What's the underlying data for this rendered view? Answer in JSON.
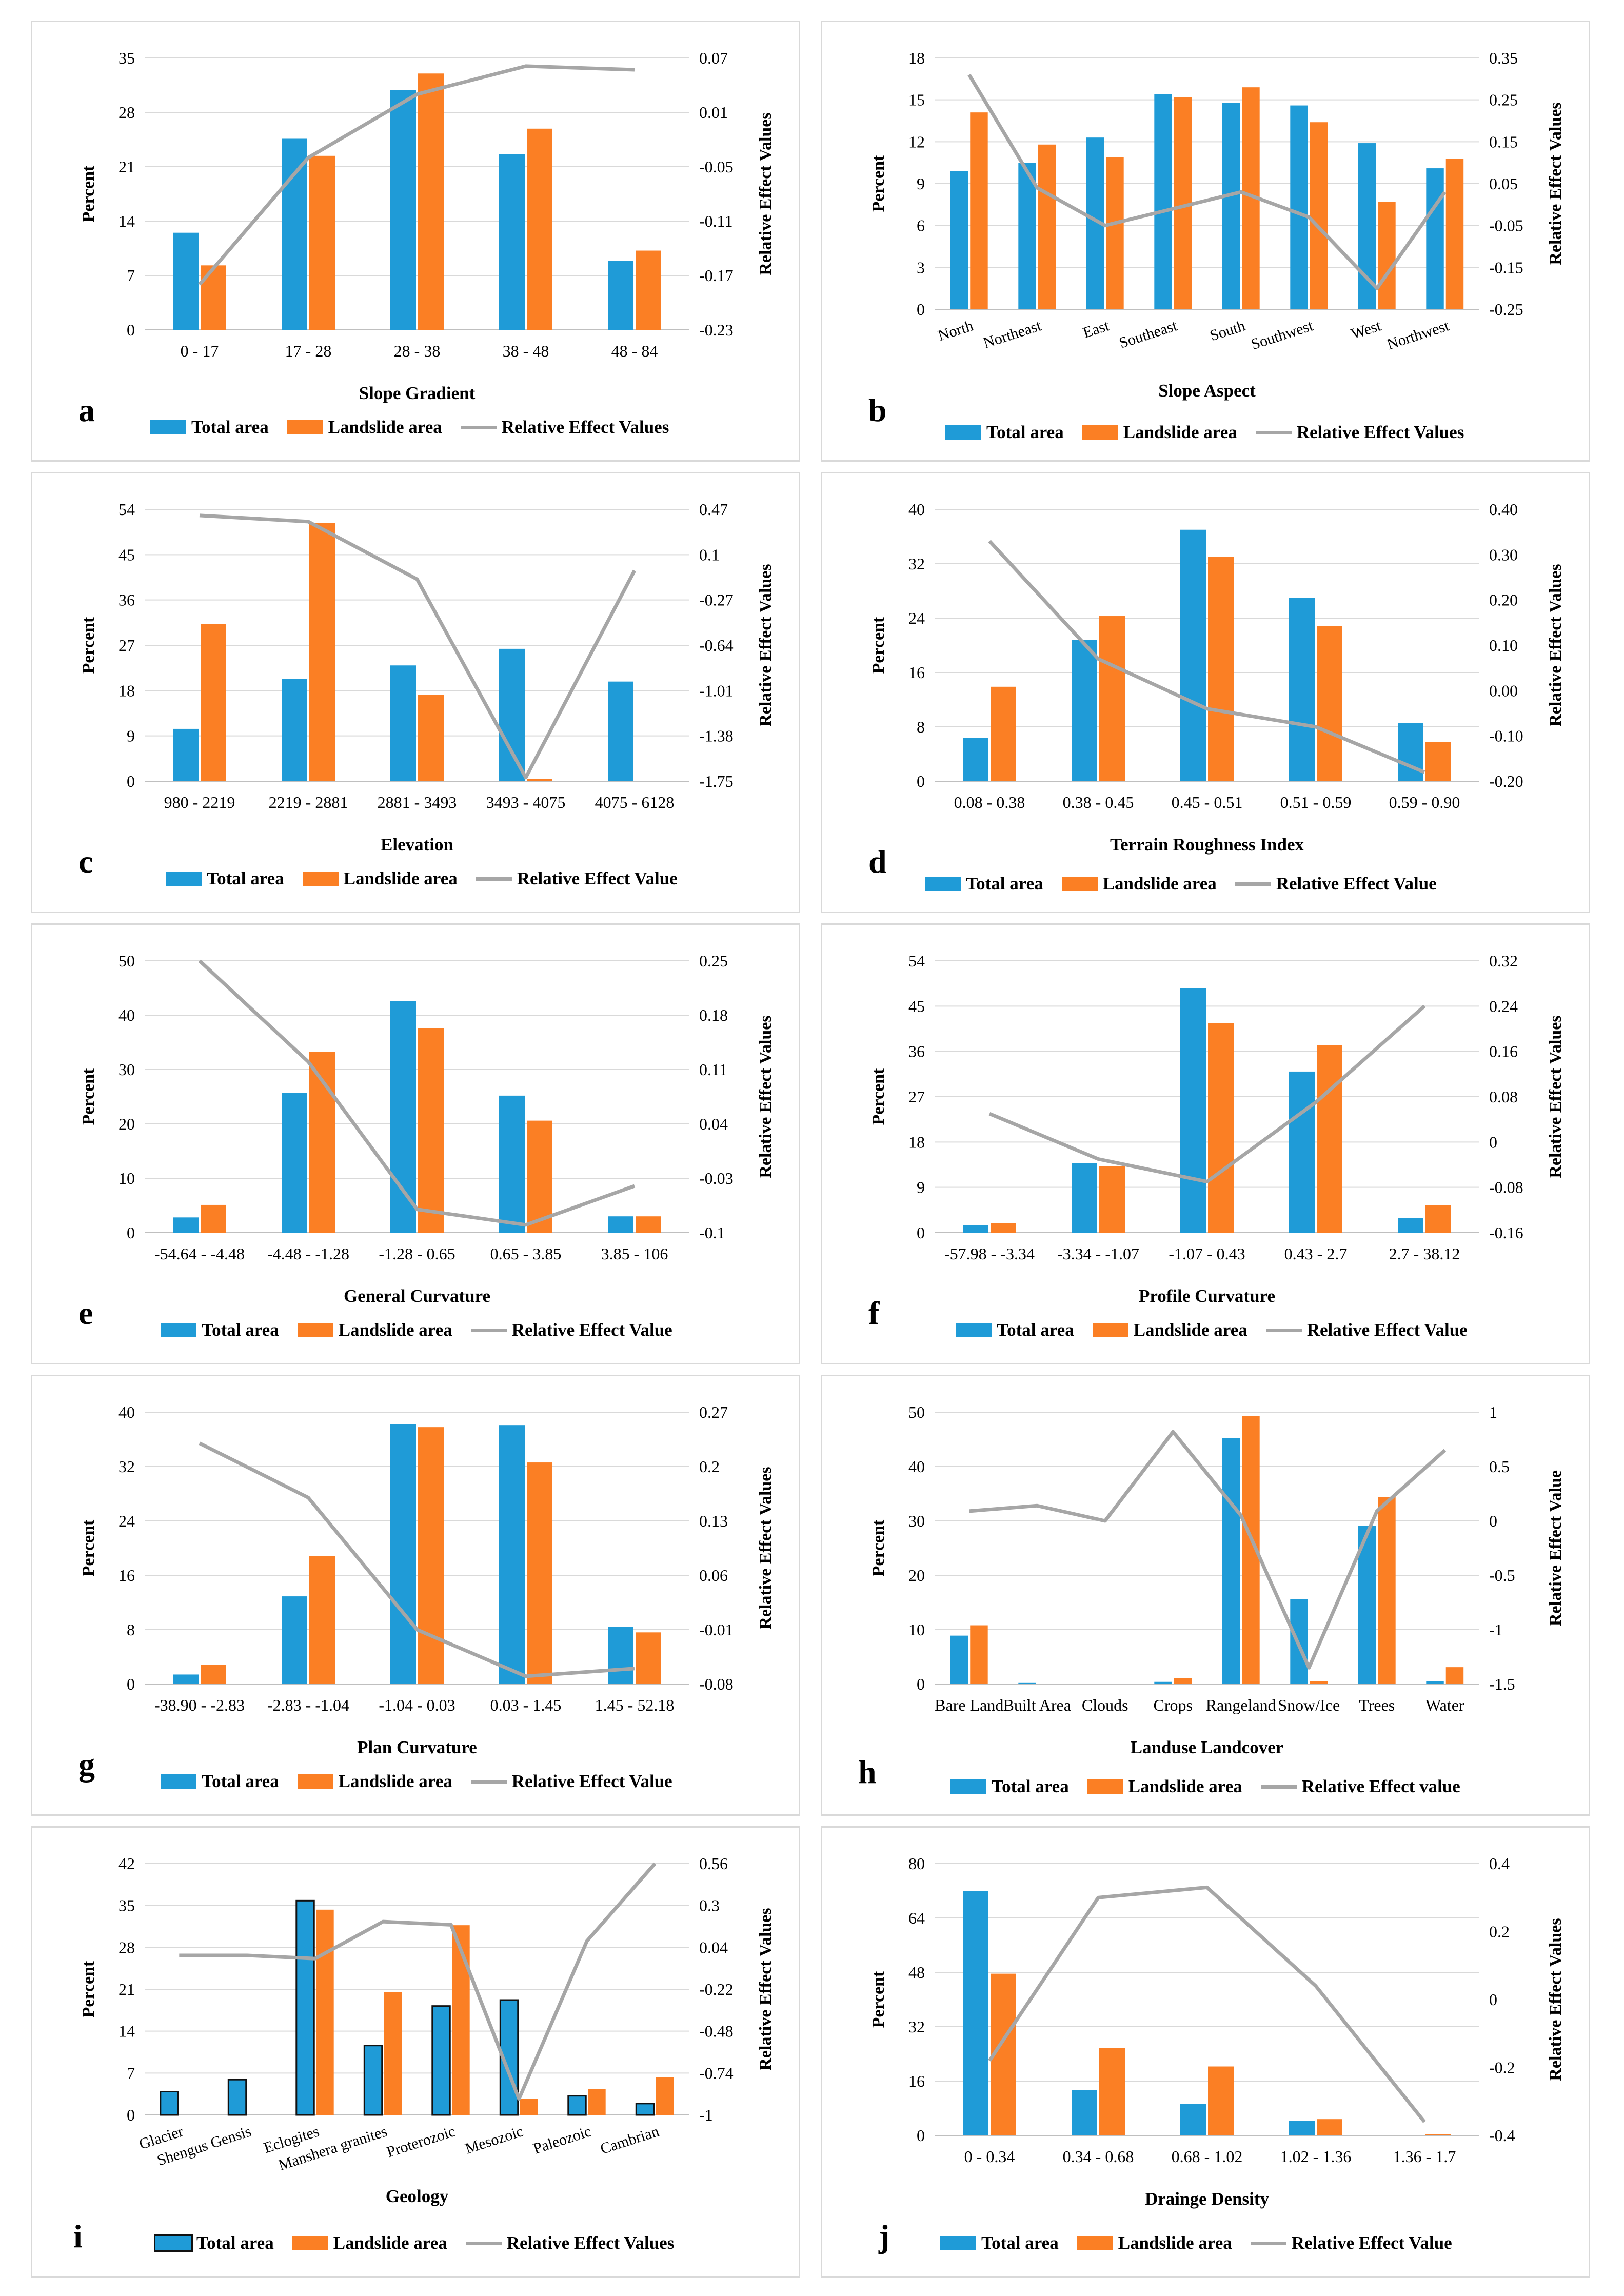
{
  "colors": {
    "total": "#1f9bd7",
    "landslide": "#fb7f24",
    "ree": "#a6a6a6",
    "grid": "#d9d9d9"
  },
  "chart_data": [
    {
      "id": "a",
      "type": "bar+line",
      "xlabel": "Slope Gradient",
      "ylabel": "Percent",
      "y2label": "Relative Effect Values",
      "categories": [
        "0 - 17",
        "17 - 28",
        "28 - 38",
        "38 - 48",
        "48 - 84"
      ],
      "ylim": [
        0,
        35
      ],
      "yticks": [
        "0",
        "7",
        "14",
        "21",
        "28",
        "35"
      ],
      "y2lim": [
        -0.23,
        0.07
      ],
      "y2ticks": [
        "-0.23",
        "-0.17",
        "-0.11",
        "-0.05",
        "0.01",
        "0.07"
      ],
      "total": [
        12.5,
        24.6,
        30.9,
        22.6,
        8.9
      ],
      "landslide": [
        8.3,
        22.4,
        33.0,
        25.9,
        10.2
      ],
      "ree": [
        -0.18,
        -0.04,
        0.03,
        0.061,
        0.057
      ],
      "legend": [
        "Total area",
        "Landslide area",
        "Relative Effect Values"
      ],
      "tilted": false
    },
    {
      "id": "b",
      "type": "bar+line",
      "xlabel": "Slope Aspect",
      "ylabel": "Percent",
      "y2label": "Relative Effect Values",
      "categories": [
        "North",
        "Northeast",
        "East",
        "Southeast",
        "South",
        "Southwest",
        "West",
        "Northwest"
      ],
      "ylim": [
        0,
        18
      ],
      "yticks": [
        "0",
        "3",
        "6",
        "9",
        "12",
        "15",
        "18"
      ],
      "y2lim": [
        -0.25,
        0.35
      ],
      "y2ticks": [
        "-0.25",
        "-0.15",
        "-0.05",
        "0.05",
        "0.15",
        "0.25",
        "0.35"
      ],
      "total": [
        9.9,
        10.5,
        12.3,
        15.4,
        14.8,
        14.6,
        11.9,
        10.1
      ],
      "landslide": [
        14.1,
        11.8,
        10.9,
        15.2,
        15.9,
        13.4,
        7.7,
        10.8
      ],
      "ree": [
        0.31,
        0.04,
        -0.05,
        -0.01,
        0.03,
        -0.03,
        -0.2,
        0.03
      ],
      "legend": [
        "Total area",
        "Landslide area",
        "Relative Effect Values"
      ],
      "tilted": true
    },
    {
      "id": "c",
      "type": "bar+line",
      "xlabel": "Elevation",
      "ylabel": "Percent",
      "y2label": "Relative Effect Values",
      "categories": [
        "980 - 2219",
        "2219 - 2881",
        "2881 - 3493",
        "3493 - 4075",
        "4075 - 6128"
      ],
      "ylim": [
        0,
        54
      ],
      "yticks": [
        "0",
        "9",
        "18",
        "27",
        "36",
        "45",
        "54"
      ],
      "y2lim": [
        -1.75,
        0.47
      ],
      "y2ticks": [
        "-1.75",
        "-1.38",
        "-1.01",
        "-0.64",
        "-0.27",
        "0.1",
        "0.47"
      ],
      "total": [
        10.4,
        20.3,
        23.0,
        26.3,
        19.8
      ],
      "landslide": [
        31.2,
        51.3,
        17.2,
        0.5,
        0
      ],
      "ree": [
        0.42,
        0.37,
        -0.1,
        -1.72,
        -0.03
      ],
      "legend": [
        "Total area",
        "Landslide area",
        "Relative Effect Value"
      ],
      "tilted": false
    },
    {
      "id": "d",
      "type": "bar+line",
      "xlabel": "Terrain Roughness Index",
      "ylabel": "Percent",
      "y2label": "Relative Effect Values",
      "categories": [
        "0.08 - 0.38",
        "0.38 - 0.45",
        "0.45 - 0.51",
        "0.51 - 0.59",
        "0.59 - 0.90"
      ],
      "ylim": [
        0,
        40
      ],
      "yticks": [
        "0",
        "8",
        "16",
        "24",
        "32",
        "40"
      ],
      "y2lim": [
        -0.2,
        0.4
      ],
      "y2ticks": [
        "-0.20",
        "-0.10",
        "0.00",
        "0.10",
        "0.20",
        "0.30",
        "0.40"
      ],
      "total": [
        6.4,
        20.8,
        37.0,
        27.0,
        8.6
      ],
      "landslide": [
        13.9,
        24.3,
        33.0,
        22.8,
        5.8
      ],
      "ree": [
        0.33,
        0.07,
        -0.04,
        -0.08,
        -0.18
      ],
      "legend": [
        "Total area",
        "Landslide area",
        "Relative Effect Value"
      ],
      "tilted": false
    },
    {
      "id": "e",
      "type": "bar+line",
      "xlabel": "General Curvature",
      "ylabel": "Percent",
      "y2label": "Relative Effect Values",
      "categories": [
        "-54.64 - -4.48",
        "-4.48 - -1.28",
        "-1.28 - 0.65",
        "0.65 - 3.85",
        "3.85 - 106"
      ],
      "ylim": [
        0,
        50
      ],
      "yticks": [
        "0",
        "10",
        "20",
        "30",
        "40",
        "50"
      ],
      "y2lim": [
        -0.1,
        0.25
      ],
      "y2ticks": [
        "-0.1",
        "-0.03",
        "0.04",
        "0.11",
        "0.18",
        "0.25"
      ],
      "total": [
        2.8,
        25.7,
        42.6,
        25.2,
        3.0
      ],
      "landslide": [
        5.1,
        33.3,
        37.6,
        20.6,
        3.0
      ],
      "ree": [
        0.25,
        0.12,
        -0.07,
        -0.09,
        -0.04
      ],
      "legend": [
        "Total area",
        "Landslide area",
        "Relative Effect Value"
      ],
      "tilted": false
    },
    {
      "id": "f",
      "type": "bar+line",
      "xlabel": "Profile Curvature",
      "ylabel": "Percent",
      "y2label": "Relative Effect Values",
      "categories": [
        "-57.98 - -3.34",
        "-3.34 - -1.07",
        "-1.07 - 0.43",
        "0.43 - 2.7",
        "2.7 - 38.12"
      ],
      "ylim": [
        0,
        54
      ],
      "yticks": [
        "0",
        "9",
        "18",
        "27",
        "36",
        "45",
        "54"
      ],
      "y2lim": [
        -0.16,
        0.32
      ],
      "y2ticks": [
        "-0.16",
        "-0.08",
        "0",
        "0.08",
        "0.16",
        "0.24",
        "0.32"
      ],
      "total": [
        1.5,
        13.8,
        48.6,
        32.0,
        2.9
      ],
      "landslide": [
        1.9,
        13.2,
        41.6,
        37.2,
        5.4
      ],
      "ree": [
        0.05,
        -0.03,
        -0.07,
        0.07,
        0.24
      ],
      "legend": [
        "Total area",
        "Landslide area",
        "Relative Effect Value"
      ],
      "tilted": false
    },
    {
      "id": "g",
      "type": "bar+line",
      "xlabel": "Plan Curvature",
      "ylabel": "Percent",
      "y2label": "Relative Effect Values",
      "categories": [
        "-38.90 - -2.83",
        "-2.83 - -1.04",
        "-1.04 - 0.03",
        "0.03 - 1.45",
        "1.45 - 52.18"
      ],
      "ylim": [
        0,
        40
      ],
      "yticks": [
        "0",
        "8",
        "16",
        "24",
        "32",
        "40"
      ],
      "y2lim": [
        -0.08,
        0.27
      ],
      "y2ticks": [
        "-0.08",
        "-0.01",
        "0.06",
        "0.13",
        "0.2",
        "0.27"
      ],
      "total": [
        1.4,
        12.9,
        38.2,
        38.1,
        8.4
      ],
      "landslide": [
        2.8,
        18.8,
        37.8,
        32.6,
        7.6
      ],
      "ree": [
        0.23,
        0.16,
        -0.01,
        -0.07,
        -0.06
      ],
      "legend": [
        "Total area",
        "Landslide area",
        "Relative Effect Value"
      ],
      "tilted": false
    },
    {
      "id": "h",
      "type": "bar+line",
      "xlabel": "Landuse Landcover",
      "ylabel": "Percent",
      "y2label": "Relative Effect Value",
      "categories": [
        "Bare Land",
        "Built Area",
        "Clouds",
        "Crops",
        "Rangeland",
        "Snow/Ice",
        "Trees",
        "Water"
      ],
      "ylim": [
        0,
        50
      ],
      "yticks": [
        "0",
        "10",
        "20",
        "30",
        "40",
        "50"
      ],
      "y2lim": [
        -1.5,
        1
      ],
      "y2ticks": [
        "-1.5",
        "-1",
        "-0.5",
        "0",
        "0.5",
        "1"
      ],
      "total": [
        8.9,
        0.3,
        0.05,
        0.4,
        45.2,
        15.6,
        29.1,
        0.5
      ],
      "landslide": [
        10.8,
        0,
        0,
        1.1,
        49.3,
        0.5,
        34.4,
        3.1
      ],
      "ree": [
        0.09,
        0.14,
        0.0,
        0.82,
        0.05,
        -1.35,
        0.09,
        0.65
      ],
      "legend": [
        "Total area",
        "Landslide area",
        "Relative Effect value"
      ],
      "tilted": false
    },
    {
      "id": "i",
      "type": "bar+line",
      "xlabel": "Geology",
      "ylabel": "Percent",
      "y2label": "Relative Effect Values",
      "categories": [
        "Glacier",
        "Shengus Gensis",
        "Eclogites",
        "Manshera granites",
        "Proterozoic",
        "Mesozoic",
        "Paleozoic",
        "Cambrian"
      ],
      "ylim": [
        0,
        42
      ],
      "yticks": [
        "0",
        "7",
        "14",
        "21",
        "28",
        "35",
        "42"
      ],
      "y2lim": [
        -1,
        0.56
      ],
      "y2ticks": [
        "-1",
        "-0.74",
        "-0.48",
        "-0.22",
        "0.04",
        "0.3",
        "0.56"
      ],
      "total": [
        3.9,
        5.9,
        35.8,
        11.6,
        18.2,
        19.2,
        3.2,
        1.9
      ],
      "landslide": [
        0,
        0,
        34.3,
        20.5,
        31.7,
        2.7,
        4.3,
        6.3
      ],
      "ree": [
        -0.01,
        -0.01,
        -0.03,
        0.2,
        0.18,
        -0.9,
        0.08,
        0.56
      ],
      "legend": [
        "Total area",
        "Landslide area",
        "Relative Effect Values"
      ],
      "tilted": true
    },
    {
      "id": "j",
      "type": "bar+line",
      "xlabel": "Drainge Density",
      "ylabel": "Percent",
      "y2label": "Relative Effect Values",
      "categories": [
        "0 - 0.34",
        "0.34 - 0.68",
        "0.68 - 1.02",
        "1.02 - 1.36",
        "1.36 - 1.7"
      ],
      "ylim": [
        0,
        80
      ],
      "yticks": [
        "0",
        "16",
        "32",
        "48",
        "64",
        "80"
      ],
      "y2lim": [
        -0.4,
        0.4
      ],
      "y2ticks": [
        "-0.4",
        "-0.2",
        "0",
        "0.2",
        "0.4"
      ],
      "total": [
        72.0,
        13.3,
        9.3,
        4.3,
        0.0
      ],
      "landslide": [
        47.6,
        25.8,
        20.3,
        4.8,
        0.4
      ],
      "ree": [
        -0.18,
        0.3,
        0.33,
        0.04,
        -0.36
      ],
      "legend": [
        "Total area",
        "Landslide area",
        "Relative Effect Value"
      ],
      "tilted": false
    }
  ]
}
